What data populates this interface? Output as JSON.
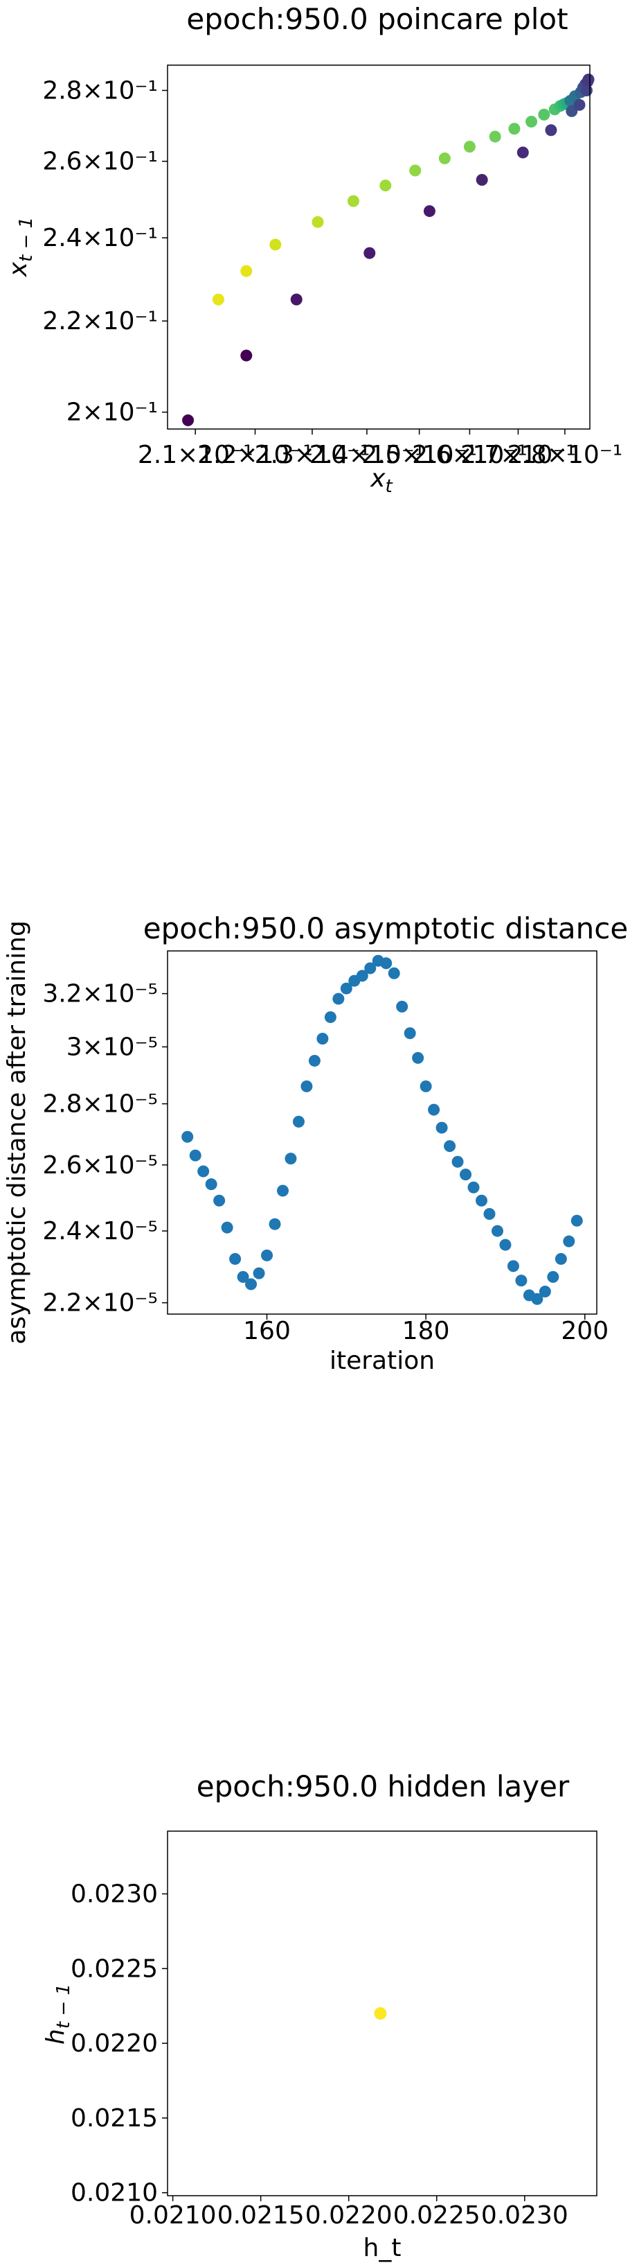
{
  "chart_data": [
    {
      "type": "scatter",
      "title": "epoch:950.0 poincare plot",
      "xlabel": "x_t",
      "ylabel": "x_{t-1}",
      "log_scale": true,
      "xlim": [
        0.2055,
        0.2855
      ],
      "ylim": [
        0.1965,
        0.2875
      ],
      "x_ticks": [
        {
          "value": 0.21,
          "label": "2.1×10⁻¹"
        },
        {
          "value": 0.22,
          "label": "2.2×10⁻¹"
        },
        {
          "value": 0.23,
          "label": "2.3×10⁻¹"
        },
        {
          "value": 0.24,
          "label": "2.4×10⁻¹"
        },
        {
          "value": 0.25,
          "label": "2.5×10⁻¹"
        },
        {
          "value": 0.26,
          "label": "2.6×10⁻¹"
        },
        {
          "value": 0.27,
          "label": "2.7×10⁻¹"
        },
        {
          "value": 0.28,
          "label": "2.8×10⁻¹"
        }
      ],
      "y_ticks": [
        {
          "value": 0.2,
          "label": "2×10⁻¹"
        },
        {
          "value": 0.22,
          "label": "2.2×10⁻¹"
        },
        {
          "value": 0.24,
          "label": "2.4×10⁻¹"
        },
        {
          "value": 0.26,
          "label": "2.6×10⁻¹"
        },
        {
          "value": 0.28,
          "label": "2.8×10⁻¹"
        }
      ],
      "colormap": "viridis",
      "points": [
        {
          "x": 0.2088,
          "y": 0.1983,
          "color": "#440154"
        },
        {
          "x": 0.2138,
          "y": 0.225,
          "color": "#e7e419"
        },
        {
          "x": 0.2185,
          "y": 0.2122,
          "color": "#440154"
        },
        {
          "x": 0.2185,
          "y": 0.2318,
          "color": "#e4e419"
        },
        {
          "x": 0.2235,
          "y": 0.2383,
          "color": "#d2e21b"
        },
        {
          "x": 0.2272,
          "y": 0.225,
          "color": "#481668"
        },
        {
          "x": 0.231,
          "y": 0.244,
          "color": "#bddf26"
        },
        {
          "x": 0.2375,
          "y": 0.2494,
          "color": "#a8db34"
        },
        {
          "x": 0.2405,
          "y": 0.2362,
          "color": "#481b6d"
        },
        {
          "x": 0.2435,
          "y": 0.2535,
          "color": "#a0da39"
        },
        {
          "x": 0.2492,
          "y": 0.2575,
          "color": "#90d743"
        },
        {
          "x": 0.252,
          "y": 0.2468,
          "color": "#48196b"
        },
        {
          "x": 0.255,
          "y": 0.2608,
          "color": "#84d44b"
        },
        {
          "x": 0.26,
          "y": 0.264,
          "color": "#7ad151"
        },
        {
          "x": 0.2625,
          "y": 0.255,
          "color": "#46256f"
        },
        {
          "x": 0.2652,
          "y": 0.2668,
          "color": "#6ece58"
        },
        {
          "x": 0.2692,
          "y": 0.269,
          "color": "#65cb5e"
        },
        {
          "x": 0.271,
          "y": 0.2624,
          "color": "#472a7a"
        },
        {
          "x": 0.2728,
          "y": 0.271,
          "color": "#5ec962"
        },
        {
          "x": 0.2755,
          "y": 0.273,
          "color": "#56c667"
        },
        {
          "x": 0.277,
          "y": 0.2686,
          "color": "#443983"
        },
        {
          "x": 0.2778,
          "y": 0.2745,
          "color": "#4ec36b"
        },
        {
          "x": 0.279,
          "y": 0.2755,
          "color": "#3fbc73"
        },
        {
          "x": 0.2798,
          "y": 0.276,
          "color": "#2fb47c"
        },
        {
          "x": 0.2805,
          "y": 0.2764,
          "color": "#25ac82"
        },
        {
          "x": 0.2812,
          "y": 0.277,
          "color": "#2a788e"
        },
        {
          "x": 0.2815,
          "y": 0.274,
          "color": "#3b528b"
        },
        {
          "x": 0.2822,
          "y": 0.2783,
          "color": "#2c728e"
        },
        {
          "x": 0.2832,
          "y": 0.2758,
          "color": "#414487"
        },
        {
          "x": 0.2835,
          "y": 0.2795,
          "color": "#33638d"
        },
        {
          "x": 0.284,
          "y": 0.2808,
          "color": "#39568c"
        },
        {
          "x": 0.2845,
          "y": 0.2818,
          "color": "#3e4c8a"
        },
        {
          "x": 0.2848,
          "y": 0.28,
          "color": "#414487"
        },
        {
          "x": 0.285,
          "y": 0.2826,
          "color": "#433e85"
        },
        {
          "x": 0.2852,
          "y": 0.2832,
          "color": "#453781"
        }
      ]
    },
    {
      "type": "scatter",
      "title": "epoch:950.0 asymptotic distance",
      "xlabel": "iteration",
      "ylabel": "asymptotic distance after training",
      "log_scale_y": true,
      "xlim": [
        147.5,
        201.5
      ],
      "ylim": [
        2.17e-05,
        3.37e-05
      ],
      "x_ticks": [
        {
          "value": 160,
          "label": "160"
        },
        {
          "value": 180,
          "label": "180"
        },
        {
          "value": 200,
          "label": "200"
        }
      ],
      "y_ticks": [
        {
          "value": 2.2e-05,
          "label": "2.2×10⁻⁵"
        },
        {
          "value": 2.4e-05,
          "label": "2.4×10⁻⁵"
        },
        {
          "value": 2.6e-05,
          "label": "2.6×10⁻⁵"
        },
        {
          "value": 2.8e-05,
          "label": "2.8×10⁻⁵"
        },
        {
          "value": 3e-05,
          "label": "3×10⁻⁵"
        },
        {
          "value": 3.2e-05,
          "label": "3.2×10⁻⁵"
        }
      ],
      "color": "#1f77b4",
      "x": [
        150,
        151,
        152,
        153,
        154,
        155,
        156,
        157,
        158,
        159,
        160,
        161,
        162,
        163,
        164,
        165,
        166,
        167,
        168,
        169,
        170,
        171,
        172,
        173,
        174,
        175,
        176,
        177,
        178,
        179,
        180,
        181,
        182,
        183,
        184,
        185,
        186,
        187,
        188,
        189,
        190,
        191,
        192,
        193,
        194,
        195,
        196,
        197,
        198,
        199
      ],
      "y": [
        2.69e-05,
        2.63e-05,
        2.58e-05,
        2.54e-05,
        2.49e-05,
        2.41e-05,
        2.32e-05,
        2.27e-05,
        2.25e-05,
        2.28e-05,
        2.33e-05,
        2.42e-05,
        2.52e-05,
        2.62e-05,
        2.74e-05,
        2.86e-05,
        2.95e-05,
        3.03e-05,
        3.11e-05,
        3.18e-05,
        3.22e-05,
        3.25e-05,
        3.27e-05,
        3.3e-05,
        3.33e-05,
        3.32e-05,
        3.28e-05,
        3.15e-05,
        3.05e-05,
        2.96e-05,
        2.86e-05,
        2.78e-05,
        2.72e-05,
        2.66e-05,
        2.61e-05,
        2.57e-05,
        2.53e-05,
        2.49e-05,
        2.45e-05,
        2.4e-05,
        2.36e-05,
        2.3e-05,
        2.26e-05,
        2.22e-05,
        2.21e-05,
        2.23e-05,
        2.27e-05,
        2.32e-05,
        2.37e-05,
        2.43e-05
      ]
    },
    {
      "type": "scatter",
      "title": "epoch:950.0 hidden layer",
      "xlabel": "h_t",
      "ylabel": "h_{t-1}",
      "xlim": [
        0.02097,
        0.02341
      ],
      "ylim": [
        0.02098,
        0.02342
      ],
      "x_ticks": [
        {
          "value": 0.021,
          "label": "0.0210"
        },
        {
          "value": 0.0215,
          "label": "0.0215"
        },
        {
          "value": 0.022,
          "label": "0.0220"
        },
        {
          "value": 0.0225,
          "label": "0.0225"
        },
        {
          "value": 0.023,
          "label": "0.0230"
        }
      ],
      "y_ticks": [
        {
          "value": 0.021,
          "label": "0.0210"
        },
        {
          "value": 0.0215,
          "label": "0.0215"
        },
        {
          "value": 0.022,
          "label": "0.0220"
        },
        {
          "value": 0.0225,
          "label": "0.0225"
        },
        {
          "value": 0.023,
          "label": "0.0230"
        }
      ],
      "points": [
        {
          "x": 0.02218,
          "y": 0.0222,
          "color": "#fde725"
        }
      ]
    }
  ]
}
